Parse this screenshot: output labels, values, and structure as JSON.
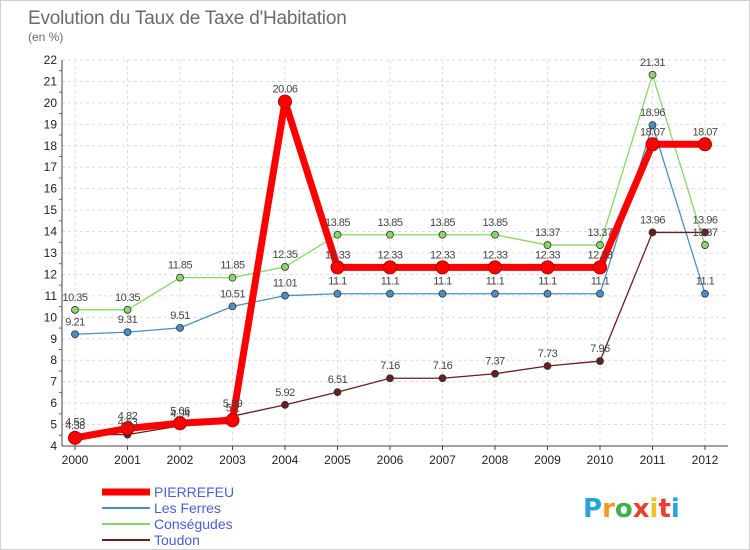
{
  "chart_data": {
    "type": "line",
    "title": "Evolution du Taux de Taxe d'Habitation",
    "subtitle": "(en %)",
    "x": [
      "2000",
      "2001",
      "2002",
      "2003",
      "2004",
      "2005",
      "2006",
      "2007",
      "2008",
      "2009",
      "2010",
      "2011",
      "2012"
    ],
    "ylim": [
      4,
      22
    ],
    "yticks": [
      4,
      5,
      6,
      7,
      8,
      9,
      10,
      11,
      12,
      13,
      14,
      15,
      16,
      17,
      18,
      19,
      20,
      21,
      22
    ],
    "grid": true,
    "legend_position": "bottom-left",
    "series": [
      {
        "name": "PIERREFEU",
        "color": "#ff0000",
        "values": [
          4.38,
          4.82,
          5.06,
          5.2,
          20.06,
          12.33,
          12.33,
          12.33,
          12.33,
          12.33,
          12.33,
          18.07,
          18.07
        ],
        "labels": [
          "4.38",
          "4.82",
          "5.06",
          "5.2",
          "20.06",
          "12.33",
          "12.33",
          "12.33",
          "12.33",
          "12.33",
          "12.33",
          "18.07",
          "18.07"
        ]
      },
      {
        "name": "Les Ferres",
        "color": "#4a8ec7",
        "values": [
          9.21,
          9.31,
          9.51,
          10.51,
          11.01,
          11.1,
          11.1,
          11.1,
          11.1,
          11.1,
          11.1,
          18.96,
          11.1
        ],
        "labels": [
          "9.21",
          "9.31",
          "9.51",
          "10.51",
          "11.01",
          "11.1",
          "11.1",
          "11.1",
          "11.1",
          "11.1",
          "11.1",
          "18.96",
          "11.1"
        ]
      },
      {
        "name": "Conségudes",
        "color": "#88d868",
        "values": [
          10.35,
          10.35,
          11.85,
          11.85,
          12.35,
          13.85,
          13.85,
          13.85,
          13.85,
          13.37,
          13.37,
          21.31,
          13.37
        ],
        "labels": [
          "10.35",
          "10.35",
          "11.85",
          "11.85",
          "12.35",
          "13.85",
          "13.85",
          "13.85",
          "13.85",
          "13.37",
          "13.37",
          "21.31",
          "13.37"
        ]
      },
      {
        "name": "Toudon",
        "color": "#6b1e1e",
        "values": [
          4.53,
          4.53,
          4.94,
          5.39,
          5.92,
          6.51,
          7.16,
          7.16,
          7.37,
          7.73,
          7.96,
          13.96,
          13.96
        ],
        "labels": [
          "4.53",
          "4.53",
          "4.94",
          "5.39",
          "5.92",
          "6.51",
          "7.16",
          "7.16",
          "7.37",
          "7.73",
          "7.96",
          "13.96",
          "13.96"
        ]
      }
    ]
  },
  "brand": {
    "letters": [
      "P",
      "r",
      "o",
      "x",
      "i",
      "t",
      "i"
    ],
    "colors": [
      "#2aa3d8",
      "#f39a1e",
      "#3bb44a",
      "#e84030",
      "#f0c21e",
      "#e84030",
      "#2aa3d8"
    ]
  }
}
